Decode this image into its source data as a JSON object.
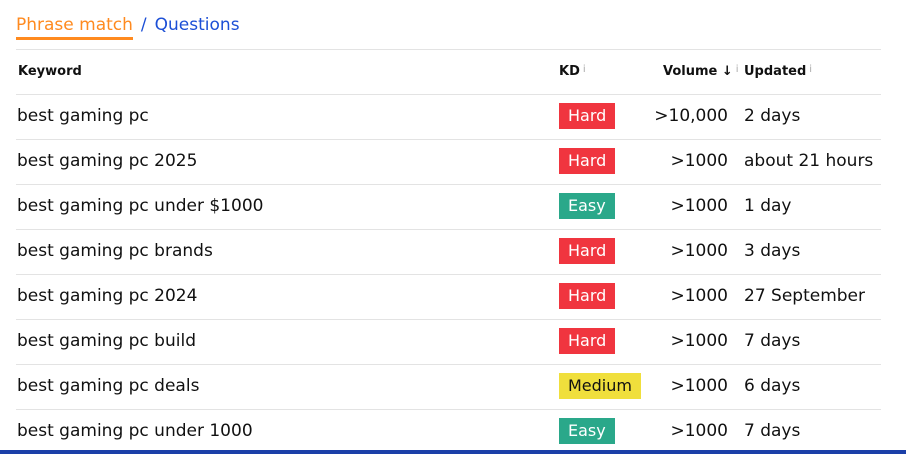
{
  "tabs": {
    "active": "Phrase match",
    "separator": "/",
    "other": "Questions"
  },
  "headers": {
    "keyword": "Keyword",
    "kd": "KD",
    "volume": "Volume",
    "sort_arrow": "↓",
    "updated": "Updated",
    "info": "i"
  },
  "colors": {
    "Hard": "#f0353f",
    "Easy": "#2aa88a",
    "Medium": "#f0df3c"
  },
  "rows": [
    {
      "keyword": "best gaming pc",
      "kd": "Hard",
      "volume": ">10,000",
      "updated": "2 days"
    },
    {
      "keyword": "best gaming pc 2025",
      "kd": "Hard",
      "volume": ">1000",
      "updated": "about 21 hours"
    },
    {
      "keyword": "best gaming pc under $1000",
      "kd": "Easy",
      "volume": ">1000",
      "updated": "1 day"
    },
    {
      "keyword": "best gaming pc brands",
      "kd": "Hard",
      "volume": ">1000",
      "updated": "3 days"
    },
    {
      "keyword": "best gaming pc 2024",
      "kd": "Hard",
      "volume": ">1000",
      "updated": "27 September"
    },
    {
      "keyword": "best gaming pc build",
      "kd": "Hard",
      "volume": ">1000",
      "updated": "7 days"
    },
    {
      "keyword": "best gaming pc deals",
      "kd": "Medium",
      "volume": ">1000",
      "updated": "6 days"
    },
    {
      "keyword": "best gaming pc under 1000",
      "kd": "Easy",
      "volume": ">1000",
      "updated": "7 days"
    }
  ]
}
